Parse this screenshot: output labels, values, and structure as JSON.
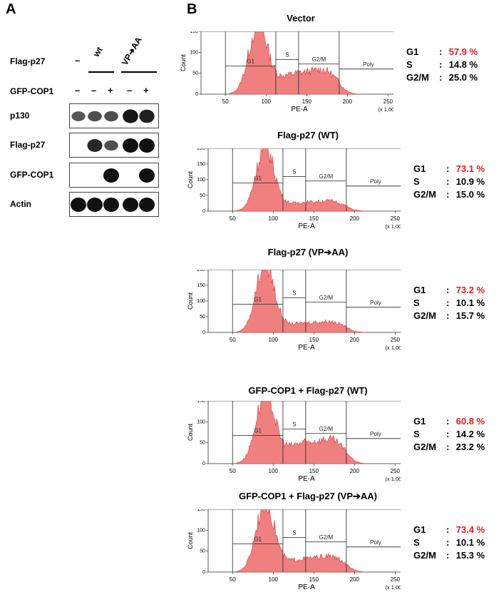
{
  "panel_a": {
    "letter": "A",
    "flag_label": "Flag-p27",
    "flag_values": [
      "–",
      "wt",
      "VP➔AA"
    ],
    "gfp_label": "GFP-COP1",
    "gfp_values": [
      "–",
      "–",
      "+",
      "–",
      "+"
    ],
    "blots": [
      {
        "label": "p130",
        "bands": [
          0.55,
          0.6,
          0.6,
          0.95,
          0.9
        ]
      },
      {
        "label": "Flag-p27",
        "bands": [
          0,
          0.85,
          0.6,
          1,
          1
        ]
      },
      {
        "label": "GFP-COP1",
        "bands": [
          0,
          0,
          1,
          0,
          1
        ]
      },
      {
        "label": "Actin",
        "bands": [
          1,
          1,
          1,
          1,
          1
        ]
      }
    ]
  },
  "panel_b": {
    "letter": "B",
    "plots": [
      {
        "title": "Vector",
        "g1_label": "G1",
        "g1": "57.9 %",
        "s_label": "S",
        "s": "14.8 %",
        "g2m_label": "G2/M",
        "g2m": "25.0 %",
        "ymax": 150,
        "yticks": [
          "0",
          "50",
          "100",
          "150"
        ],
        "peak": 160,
        "tail": 50
      },
      {
        "title": "Flag-p27 (WT)",
        "g1_label": "G1",
        "g1": "73.1 %",
        "s_label": "S",
        "s": "10.9 %",
        "g2m_label": "G2/M",
        "g2m": "15.0 %",
        "ymax": 200,
        "yticks": [
          "0",
          "50",
          "100",
          "150",
          "200"
        ],
        "peak": 200,
        "tail": 28
      },
      {
        "title": "Flag-p27 (VP➔AA)",
        "g1_label": "G1",
        "g1": "73.2 %",
        "s_label": "S",
        "s": "10.1 %",
        "g2m_label": "G2/M",
        "g2m": "15.7 %",
        "ymax": 200,
        "yticks": [
          "0",
          "50",
          "100",
          "150",
          "200"
        ],
        "peak": 215,
        "tail": 30
      },
      {
        "title": "GFP-COP1 + Flag-p27 (WT)",
        "g1_label": "G1",
        "g1": "60.8 %",
        "s_label": "S",
        "s": "14.2 %",
        "g2m_label": "G2/M",
        "g2m": "23.2 %",
        "ymax": 150,
        "yticks": [
          "0",
          "50",
          "100",
          "150"
        ],
        "peak": 160,
        "tail": 50
      },
      {
        "title": "GFP-COP1 + Flag-p27 (VP➔AA)",
        "g1_label": "G1",
        "g1": "73.4 %",
        "s_label": "S",
        "s": "10.1 %",
        "g2m_label": "G2/M",
        "g2m": "15.3 %",
        "ymax": 150,
        "yticks": [
          "0",
          "50",
          "100",
          "150"
        ],
        "peak": 165,
        "tail": 32
      }
    ],
    "x_label": "PE-A",
    "x_scale": "(x 1,000)",
    "y_label": "Count",
    "x_ticks": [
      "50",
      "100",
      "150",
      "200",
      "250"
    ],
    "gate_labels": [
      "G1",
      "S",
      "G2/M",
      "Poly"
    ]
  }
}
